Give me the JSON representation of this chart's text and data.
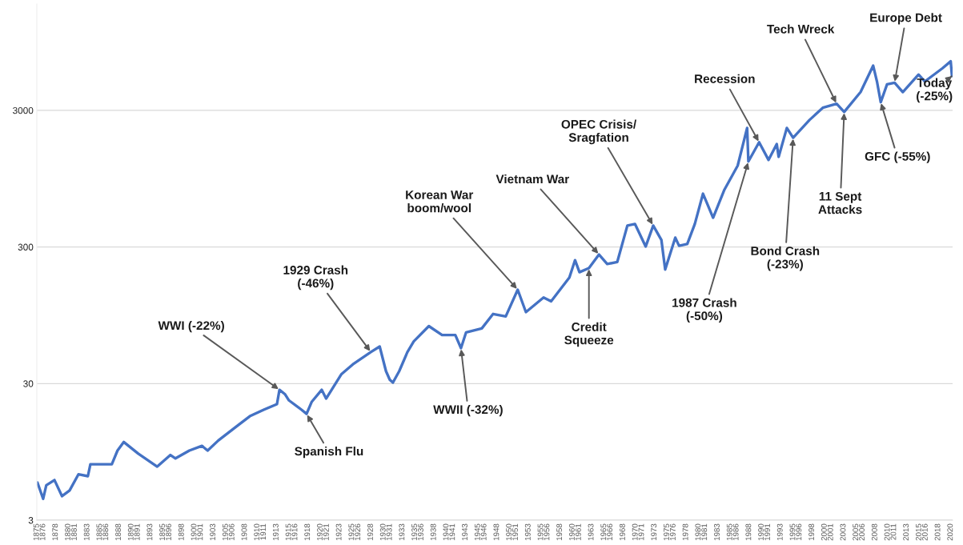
{
  "chart_data": {
    "type": "line",
    "log": "y",
    "grid": "y",
    "marker": "none",
    "line_style": "solid",
    "xlim": [
      1875,
      2020.3
    ],
    "ylim": [
      3,
      18000
    ],
    "yticks": [
      3,
      30,
      300,
      3000
    ],
    "xticks": [
      1875,
      1876,
      1878,
      1880,
      1881,
      1883,
      1885,
      1886,
      1888,
      1890,
      1891,
      1893,
      1895,
      1896,
      1898,
      1900,
      1901,
      1903,
      1905,
      1906,
      1908,
      1910,
      1911,
      1913,
      1915,
      1916,
      1918,
      1920,
      1921,
      1923,
      1925,
      1926,
      1928,
      1930,
      1931,
      1933,
      1935,
      1936,
      1938,
      1940,
      1941,
      1943,
      1945,
      1946,
      1948,
      1950,
      1951,
      1953,
      1955,
      1956,
      1958,
      1960,
      1961,
      1963,
      1965,
      1966,
      1968,
      1970,
      1971,
      1973,
      1975,
      1976,
      1978,
      1980,
      1981,
      1983,
      1985,
      1986,
      1988,
      1990,
      1991,
      1993,
      1995,
      1996,
      1998,
      2000,
      2001,
      2003,
      2005,
      2006,
      2008,
      2010,
      2011,
      2013,
      2015,
      2016,
      2018,
      2020
    ],
    "series": [
      {
        "color": "#4472c4",
        "x": [
          1875.1,
          1876,
          1876.5,
          1877.8,
          1879,
          1880.2,
          1881.6,
          1883.1,
          1883.5,
          1886.9,
          1887.8,
          1888.8,
          1891.1,
          1894.1,
          1896.2,
          1897,
          1899.2,
          1901.2,
          1902.1,
          1903.8,
          1906.8,
          1908.8,
          1911,
          1913.1,
          1913.5,
          1914.4,
          1915,
          1917,
          1917.8,
          1918.6,
          1920.2,
          1920.9,
          1923.3,
          1925.3,
          1928,
          1929.4,
          1930.4,
          1931,
          1931.5,
          1932.5,
          1933.8,
          1934.8,
          1937.2,
          1939.3,
          1941.4,
          1942.3,
          1943.1,
          1945.6,
          1947.4,
          1949.4,
          1951.3,
          1952.6,
          1955.4,
          1956.6,
          1959.5,
          1960.4,
          1961.1,
          1962.6,
          1964.2,
          1965.5,
          1967.1,
          1968.7,
          1969.9,
          1971.6,
          1972.8,
          1974.1,
          1974.7,
          1976.3,
          1976.9,
          1978.2,
          1979.4,
          1980.7,
          1982.3,
          1984.1,
          1986.2,
          1987.7,
          1987.9,
          1989.6,
          1991.1,
          1992.4,
          1992.7,
          1994,
          1995,
          1997.6,
          1999.7,
          2001.9,
          2003.1,
          2005.7,
          2007.7,
          2008.3,
          2008.9,
          2009.9,
          2011.1,
          2012.4,
          2014.9,
          2015.9,
          2018.7,
          2020,
          2020.2
        ],
        "values": [
          5.65,
          4.3,
          5.4,
          5.9,
          4.5,
          4.95,
          6.5,
          6.3,
          7.7,
          7.7,
          9.7,
          11.2,
          9.2,
          7.4,
          9.0,
          8.5,
          9.7,
          10.5,
          9.7,
          11.5,
          14.7,
          17.3,
          19.3,
          21.2,
          27,
          25,
          22.6,
          19.3,
          18,
          22,
          27,
          23.3,
          35,
          42,
          51,
          56,
          37,
          32,
          30.5,
          37,
          51,
          61,
          79,
          68,
          68,
          54.5,
          71,
          76,
          97,
          93,
          146,
          100,
          128,
          120,
          179,
          240,
          196,
          210,
          264,
          225,
          233,
          430,
          442,
          302,
          430,
          337,
          205,
          351,
          306,
          315,
          442,
          736,
          491,
          788,
          1180,
          2230,
          1267,
          1750,
          1300,
          1700,
          1370,
          2230,
          1890,
          2550,
          3130,
          3350,
          2920,
          4080,
          6370,
          4880,
          3440,
          4650,
          4780,
          4080,
          5480,
          4880,
          6100,
          6850,
          5350
        ]
      }
    ],
    "annotations": [
      {
        "text": "WWI (-22%)",
        "x": 1913.5,
        "y": 27
      },
      {
        "text": "Spanish Flu",
        "x": 1917.8,
        "y": 18
      },
      {
        "text": "1929 Crash\n(-46%)",
        "x": 1928,
        "y": 51
      },
      {
        "text": "WWII (-32%)",
        "x": 1942.3,
        "y": 54.5
      },
      {
        "text": "Korean War\nboom/wool",
        "x": 1951.3,
        "y": 146
      },
      {
        "text": "Vietnam War",
        "x": 1964.2,
        "y": 264
      },
      {
        "text": "Credit\nSqueeze",
        "x": 1962.6,
        "y": 210
      },
      {
        "text": "OPEC Crisis/\nSragfation",
        "x": 1972.8,
        "y": 430
      },
      {
        "text": "1987 Crash\n(-50%)",
        "x": 1987.9,
        "y": 1267
      },
      {
        "text": "Recession",
        "x": 1989.6,
        "y": 1750
      },
      {
        "text": "Bond Crash\n(-23%)",
        "x": 1995,
        "y": 1890
      },
      {
        "text": "Tech Wreck",
        "x": 2001.9,
        "y": 3350
      },
      {
        "text": "11 Sept\nAttacks",
        "x": 2003.1,
        "y": 2920
      },
      {
        "text": "GFC (-55%)",
        "x": 2008.9,
        "y": 3440
      },
      {
        "text": "Europe Debt",
        "x": 2011.1,
        "y": 4780
      },
      {
        "text": "Today\n(-25%)",
        "x": 2020.2,
        "y": 5350
      }
    ]
  }
}
